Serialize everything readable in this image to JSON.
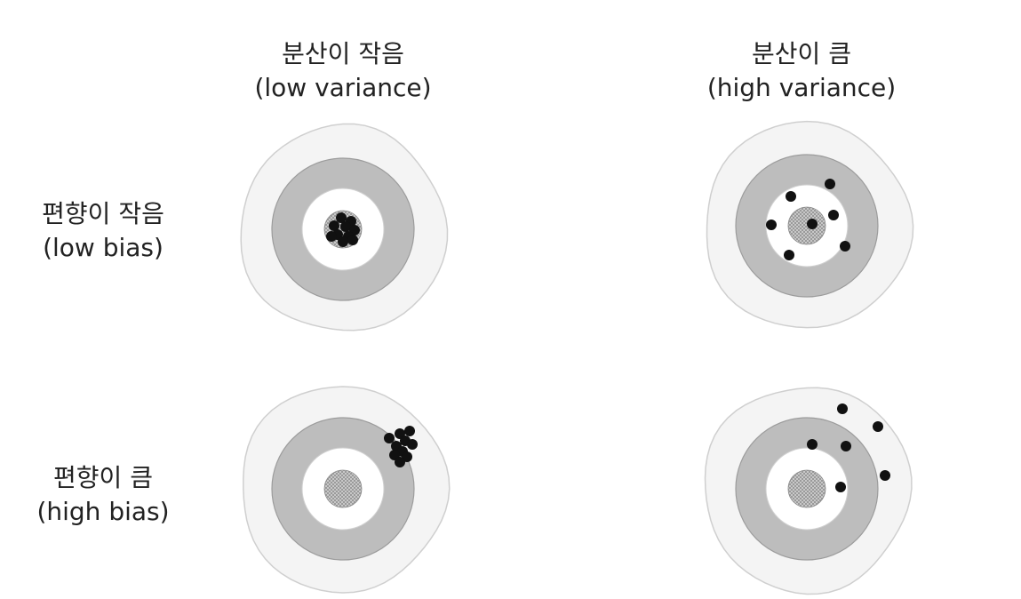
{
  "columns": [
    {
      "korean": "분산이 작음",
      "english": "(low variance)"
    },
    {
      "korean": "분산이 큼",
      "english": "(high variance)"
    }
  ],
  "rows": [
    {
      "korean": "편향이 작음",
      "english": "(low bias)"
    },
    {
      "korean": "편향이 큼",
      "english": "(high bias)"
    }
  ],
  "colors": {
    "outer_ring": "#f4f4f4",
    "middle_ring": "#bdbdbd",
    "inner_ring": "#ffffff",
    "bullseye": "#9a9a9a",
    "shot": "#111111"
  }
}
